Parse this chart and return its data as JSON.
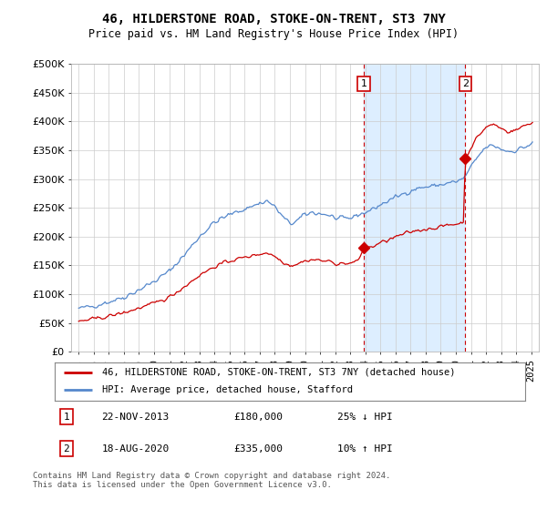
{
  "title": "46, HILDERSTONE ROAD, STOKE-ON-TRENT, ST3 7NY",
  "subtitle": "Price paid vs. HM Land Registry's House Price Index (HPI)",
  "legend_line1": "46, HILDERSTONE ROAD, STOKE-ON-TRENT, ST3 7NY (detached house)",
  "legend_line2": "HPI: Average price, detached house, Stafford",
  "annotation1_num": "1",
  "annotation1_date": "22-NOV-2013",
  "annotation1_price": "£180,000",
  "annotation1_hpi": "25% ↓ HPI",
  "annotation2_num": "2",
  "annotation2_date": "18-AUG-2020",
  "annotation2_price": "£335,000",
  "annotation2_hpi": "10% ↑ HPI",
  "footer": "Contains HM Land Registry data © Crown copyright and database right 2024.\nThis data is licensed under the Open Government Licence v3.0.",
  "property_color": "#cc0000",
  "hpi_color": "#5588cc",
  "shade_color": "#ddeeff",
  "vline_color": "#cc0000",
  "ylim": [
    0,
    500000
  ],
  "yticks": [
    0,
    50000,
    100000,
    150000,
    200000,
    250000,
    300000,
    350000,
    400000,
    450000,
    500000
  ],
  "sale1_year": 2013.9,
  "sale1_price": 180000,
  "sale2_year": 2020.63,
  "sale2_price": 335000,
  "xlim_left": 1994.5,
  "xlim_right": 2025.5,
  "figsize": [
    6.0,
    5.6
  ],
  "dpi": 100
}
